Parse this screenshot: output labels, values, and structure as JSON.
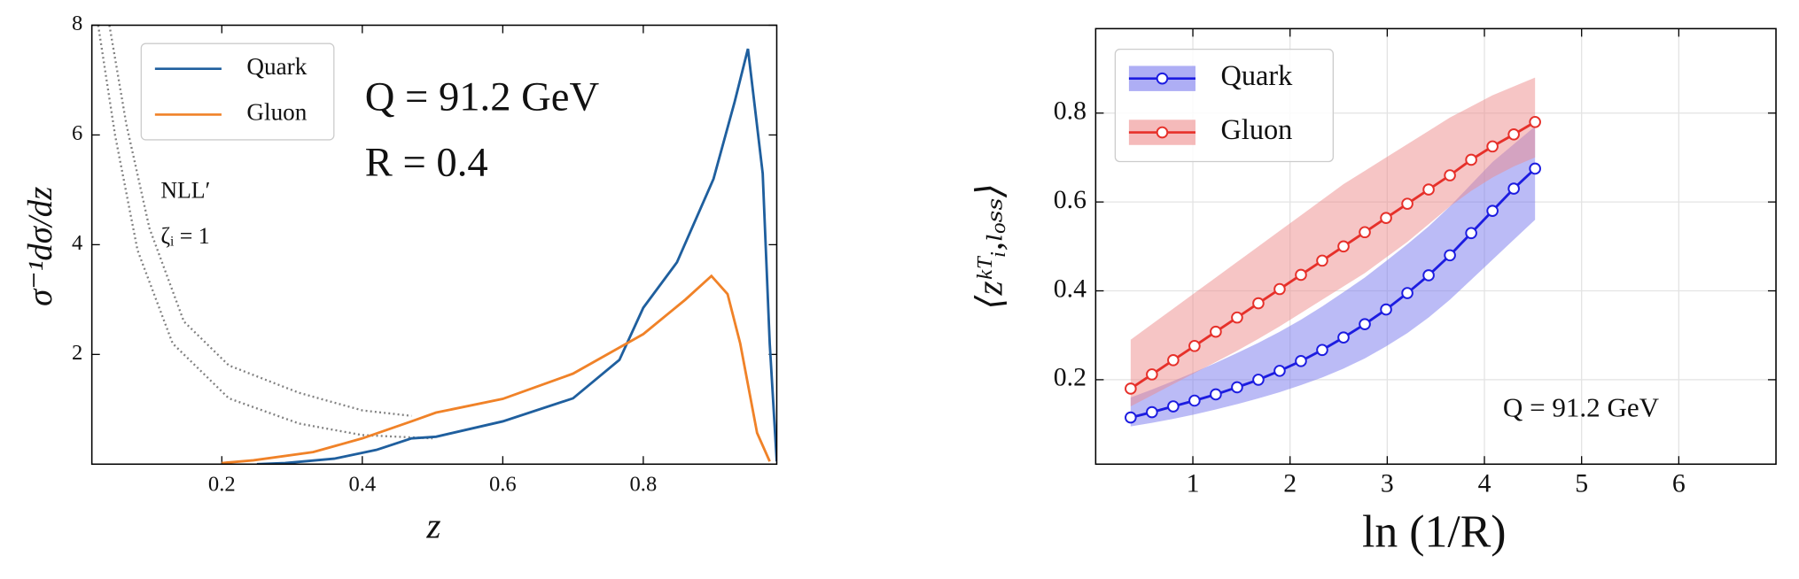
{
  "chart_data": [
    {
      "type": "line",
      "xlabel": "z",
      "ylabel": "σ⁻¹dσ/dz",
      "annotations": [
        "Q = 91.2 GeV",
        "R = 0.4",
        "NLL′",
        "ζᵢ = 1"
      ],
      "xlim": [
        0.015,
        0.99
      ],
      "ylim": [
        0,
        8
      ],
      "xticks": [
        0.2,
        0.4,
        0.6,
        0.8
      ],
      "yticks": [
        2,
        4,
        6,
        8
      ],
      "grid": false,
      "legend": "upper left",
      "series": [
        {
          "color": "#808080",
          "linestyle": "dotted",
          "x": [
            0.04,
            0.064,
            0.097,
            0.146,
            0.21,
            0.31,
            0.4,
            0.47
          ],
          "values": [
            8,
            6.2,
            4.3,
            2.6,
            1.8,
            1.3,
            0.98,
            0.88
          ]
        },
        {
          "color": "#808080",
          "linestyle": "dotted",
          "x": [
            0.024,
            0.048,
            0.08,
            0.13,
            0.21,
            0.31,
            0.4,
            0.5
          ],
          "values": [
            8,
            6,
            3.9,
            2.2,
            1.2,
            0.74,
            0.53,
            0.47
          ]
        },
        {
          "name": "Quark",
          "color": "#1f5f9e",
          "x": [
            0.25,
            0.29,
            0.36,
            0.42,
            0.47,
            0.505,
            0.6,
            0.7,
            0.766,
            0.8,
            0.848,
            0.9,
            0.93,
            0.949,
            0.97,
            0.98,
            0.99
          ],
          "values": [
            0,
            0.02,
            0.1,
            0.26,
            0.47,
            0.5,
            0.78,
            1.2,
            1.9,
            2.85,
            3.68,
            5.2,
            6.6,
            7.57,
            5.3,
            2.2,
            0.05
          ]
        },
        {
          "name": "Gluon",
          "color": "#f08228",
          "x": [
            0.2,
            0.245,
            0.33,
            0.4,
            0.47,
            0.505,
            0.6,
            0.7,
            0.8,
            0.86,
            0.897,
            0.92,
            0.938,
            0.962,
            0.98
          ],
          "values": [
            0.02,
            0.07,
            0.22,
            0.47,
            0.78,
            0.94,
            1.19,
            1.65,
            2.37,
            3.0,
            3.43,
            3.1,
            2.2,
            0.57,
            0.05
          ]
        }
      ]
    },
    {
      "type": "line",
      "xlabel": "ln (1/R)",
      "ylabel": "⟨zᵏᵀᵢ,ₗₒₛₛ⟩",
      "annotations": [
        "Q = 91.2 GeV"
      ],
      "xlim": [
        0,
        7
      ],
      "ylim": [
        0.01,
        0.99
      ],
      "xticks": [
        1,
        2,
        3,
        4,
        5,
        6
      ],
      "yticks": [
        0.2,
        0.4,
        0.6,
        0.8
      ],
      "grid": true,
      "legend": "upper left",
      "x": [
        0.36,
        0.579,
        0.798,
        1.017,
        1.236,
        1.455,
        1.674,
        1.893,
        2.112,
        2.331,
        2.55,
        2.769,
        2.988,
        3.207,
        3.426,
        3.645,
        3.864,
        4.083,
        4.302,
        4.521
      ],
      "series": [
        {
          "name": "Quark",
          "color": "#1c1ce0",
          "band_color": "#7878ee",
          "marker": true,
          "values": [
            0.115,
            0.127,
            0.14,
            0.153,
            0.167,
            0.183,
            0.2,
            0.22,
            0.242,
            0.267,
            0.295,
            0.325,
            0.358,
            0.395,
            0.435,
            0.48,
            0.53,
            0.58,
            0.63,
            0.675
          ],
          "lower": [
            0.095,
            0.103,
            0.112,
            0.122,
            0.133,
            0.145,
            0.158,
            0.172,
            0.188,
            0.205,
            0.225,
            0.248,
            0.275,
            0.305,
            0.34,
            0.38,
            0.425,
            0.47,
            0.515,
            0.56
          ],
          "upper": [
            0.16,
            0.178,
            0.197,
            0.217,
            0.238,
            0.26,
            0.283,
            0.308,
            0.335,
            0.365,
            0.397,
            0.43,
            0.467,
            0.505,
            0.545,
            0.59,
            0.64,
            0.69,
            0.73,
            0.77
          ]
        },
        {
          "name": "Gluon",
          "color": "#e6302a",
          "band_color": "#ee8c8c",
          "marker": true,
          "values": [
            0.18,
            0.212,
            0.244,
            0.276,
            0.308,
            0.34,
            0.372,
            0.404,
            0.436,
            0.468,
            0.5,
            0.532,
            0.564,
            0.596,
            0.628,
            0.66,
            0.695,
            0.725,
            0.752,
            0.78
          ],
          "lower": [
            0.14,
            0.165,
            0.19,
            0.215,
            0.24,
            0.265,
            0.292,
            0.32,
            0.35,
            0.38,
            0.41,
            0.44,
            0.475,
            0.51,
            0.55,
            0.59,
            0.625,
            0.655,
            0.68,
            0.7
          ],
          "upper": [
            0.29,
            0.325,
            0.36,
            0.395,
            0.43,
            0.465,
            0.5,
            0.535,
            0.57,
            0.605,
            0.64,
            0.67,
            0.7,
            0.73,
            0.76,
            0.79,
            0.815,
            0.84,
            0.86,
            0.88
          ]
        }
      ]
    }
  ]
}
